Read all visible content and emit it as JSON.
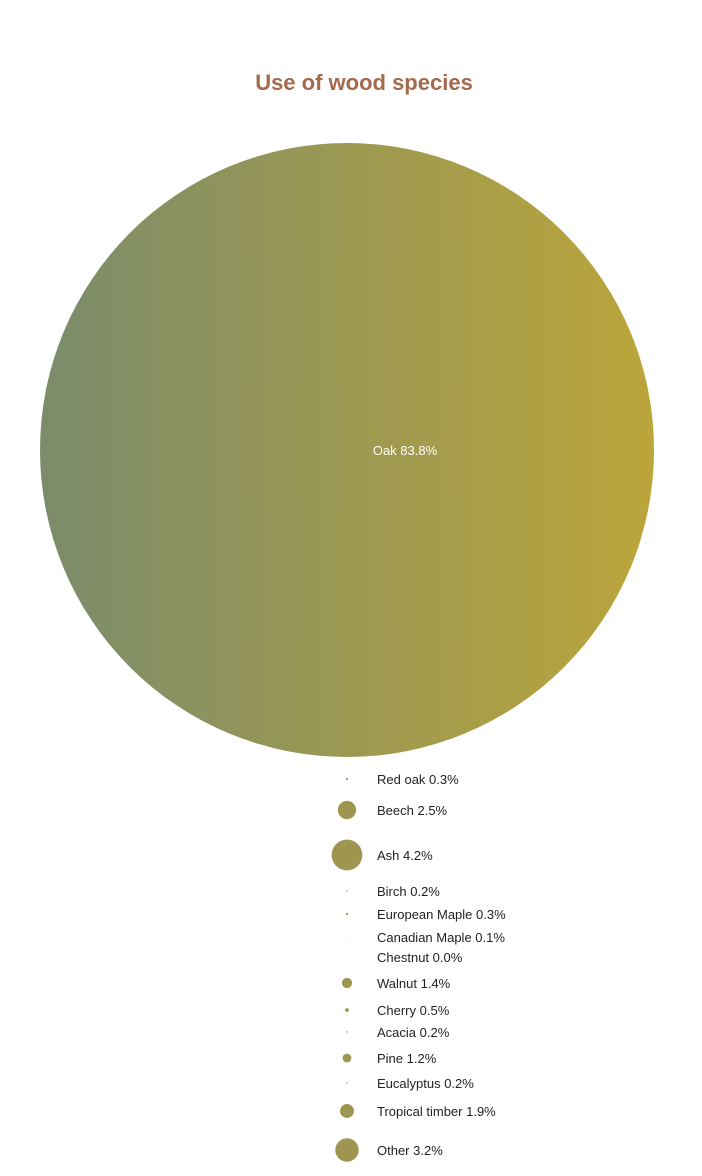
{
  "chart_data": {
    "type": "bubble",
    "title": "Use of wood species",
    "colors": {
      "gradient_start": "#7b8c6b",
      "gradient_end": "#bca53a",
      "bubble": "#9e9650",
      "title": "#a5694b"
    },
    "items": [
      {
        "label": "Oak",
        "value": 83.8,
        "display": "Oak 83.8%"
      },
      {
        "label": "Red oak",
        "value": 0.3,
        "display": "Red oak 0.3%"
      },
      {
        "label": "Beech",
        "value": 2.5,
        "display": "Beech 2.5%"
      },
      {
        "label": "Ash",
        "value": 4.2,
        "display": "Ash 4.2%"
      },
      {
        "label": "Birch",
        "value": 0.2,
        "display": "Birch 0.2%"
      },
      {
        "label": "European Maple",
        "value": 0.3,
        "display": "European Maple 0.3%"
      },
      {
        "label": "Canadian Maple",
        "value": 0.1,
        "display": "Canadian Maple 0.1%"
      },
      {
        "label": "Chestnut",
        "value": 0.0,
        "display": "Chestnut 0.0%"
      },
      {
        "label": "Walnut",
        "value": 1.4,
        "display": "Walnut 1.4%"
      },
      {
        "label": "Cherry",
        "value": 0.5,
        "display": "Cherry 0.5%"
      },
      {
        "label": "Acacia",
        "value": 0.2,
        "display": "Acacia 0.2%"
      },
      {
        "label": "Pine",
        "value": 1.2,
        "display": "Pine 1.2%"
      },
      {
        "label": "Eucalyptus",
        "value": 0.2,
        "display": "Eucalyptus 0.2%"
      },
      {
        "label": "Tropical timber",
        "value": 1.9,
        "display": "Tropical timber 1.9%"
      },
      {
        "label": "Other",
        "value": 3.2,
        "display": "Other 3.2%"
      }
    ]
  }
}
